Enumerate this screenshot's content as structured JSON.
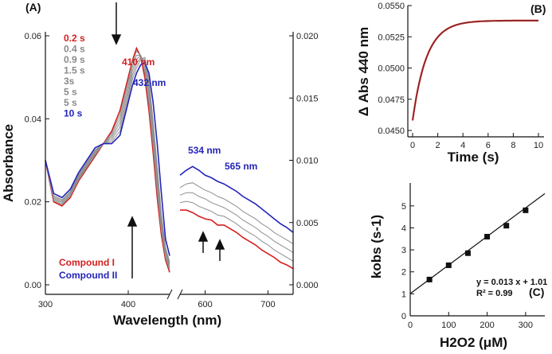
{
  "chart_data": [
    {
      "panel_label": "(A)",
      "type": "line",
      "xlabel": "Wavelength (nm)",
      "ylabel": "Absorbance",
      "xlim": [
        300,
        740
      ],
      "xticks": [
        300,
        400,
        600,
        700
      ],
      "ylim_left": [
        0.0,
        0.06
      ],
      "yticks_left": [
        "0.00",
        "0.02",
        "0.04",
        "0.06"
      ],
      "ylim_right": [
        0.0,
        0.02
      ],
      "yticks_right": [
        "0.000",
        "0.005",
        "0.010",
        "0.015",
        "0.020"
      ],
      "axis_break_between": [
        450,
        560
      ],
      "legend": [
        {
          "label": "0.2 s",
          "color": "#d42020"
        },
        {
          "label": "0.4 s",
          "color": "#8a8a8a"
        },
        {
          "label": "0.9 s",
          "color": "#8a8a8a"
        },
        {
          "label": "1.5 s",
          "color": "#8a8a8a"
        },
        {
          "label": "3s",
          "color": "#8a8a8a"
        },
        {
          "label": "5 s",
          "color": "#8a8a8a"
        },
        {
          "label": "5 s",
          "color": "#8a8a8a"
        },
        {
          "label": "10 s",
          "color": "#2424b8"
        }
      ],
      "annotations": [
        {
          "text": "410 nm",
          "color": "#d42020"
        },
        {
          "text": "432 nm",
          "color": "#2424b8"
        },
        {
          "text": "534 nm",
          "color": "#2424b8"
        },
        {
          "text": "565 nm",
          "color": "#2424b8"
        }
      ],
      "compound_labels": [
        {
          "text": "Compound I",
          "color": "#d42020"
        },
        {
          "text": "Compound II",
          "color": "#2424b8"
        }
      ],
      "soret_region": {
        "x": [
          300,
          310,
          320,
          330,
          340,
          350,
          360,
          370,
          380,
          390,
          400,
          405,
          410,
          415,
          420,
          425,
          430,
          435,
          440,
          445,
          450
        ],
        "series": [
          {
            "name": "0.2 s",
            "color": "#d42020",
            "values": [
              0.03,
              0.02,
              0.019,
              0.021,
              0.025,
              0.028,
              0.031,
              0.034,
              0.037,
              0.042,
              0.05,
              0.054,
              0.057,
              0.055,
              0.05,
              0.042,
              0.032,
              0.021,
              0.012,
              0.006,
              0.003
            ]
          },
          {
            "name": "0.4 s",
            "color": "#8f8f8f",
            "values": [
              0.03,
              0.0203,
              0.0193,
              0.0213,
              0.0253,
              0.0283,
              0.0313,
              0.034,
              0.0365,
              0.041,
              0.049,
              0.0535,
              0.0563,
              0.0553,
              0.0513,
              0.0435,
              0.0335,
              0.0225,
              0.013,
              0.0066,
              0.0035
            ]
          },
          {
            "name": "0.9 s",
            "color": "#8f8f8f",
            "values": [
              0.03,
              0.0206,
              0.0196,
              0.0216,
              0.0256,
              0.0286,
              0.0316,
              0.034,
              0.036,
              0.04,
              0.048,
              0.0525,
              0.0553,
              0.0553,
              0.0523,
              0.045,
              0.035,
              0.024,
              0.014,
              0.0072,
              0.004
            ]
          },
          {
            "name": "1.5 s",
            "color": "#8f8f8f",
            "values": [
              0.03,
              0.0209,
              0.0199,
              0.0219,
              0.0259,
              0.0289,
              0.0319,
              0.034,
              0.0355,
              0.039,
              0.047,
              0.0515,
              0.0543,
              0.0553,
              0.0533,
              0.0465,
              0.0365,
              0.0255,
              0.015,
              0.0078,
              0.0045
            ]
          },
          {
            "name": "3s",
            "color": "#8f8f8f",
            "values": [
              0.03,
              0.0212,
              0.0202,
              0.0222,
              0.0262,
              0.0292,
              0.0322,
              0.034,
              0.035,
              0.038,
              0.046,
              0.0505,
              0.0533,
              0.0548,
              0.0543,
              0.048,
              0.038,
              0.027,
              0.016,
              0.0084,
              0.005
            ]
          },
          {
            "name": "5 s",
            "color": "#8f8f8f",
            "values": [
              0.03,
              0.0215,
              0.0205,
              0.0225,
              0.0265,
              0.0295,
              0.0325,
              0.034,
              0.0345,
              0.037,
              0.045,
              0.0495,
              0.0523,
              0.0543,
              0.0548,
              0.0495,
              0.0395,
              0.0285,
              0.017,
              0.009,
              0.0055
            ]
          },
          {
            "name": "10 s",
            "color": "#2424b8",
            "values": [
              0.03,
              0.022,
              0.021,
              0.023,
              0.027,
              0.03,
              0.033,
              0.034,
              0.034,
              0.036,
              0.044,
              0.048,
              0.051,
              0.053,
              0.0535,
              0.051,
              0.044,
              0.034,
              0.022,
              0.011,
              0.007
            ]
          }
        ]
      },
      "visible_region": {
        "x": [
          560,
          570,
          580,
          590,
          600,
          610,
          620,
          630,
          640,
          650,
          660,
          670,
          680,
          690,
          700,
          710,
          720,
          730,
          740
        ],
        "series": [
          {
            "name": "0.2 s",
            "color": "#d42020",
            "values": [
              0.006,
              0.006,
              0.0058,
              0.0055,
              0.0053,
              0.0052,
              0.0048,
              0.0048,
              0.0045,
              0.0042,
              0.0038,
              0.0035,
              0.0032,
              0.0028,
              0.0025,
              0.0022,
              0.0018,
              0.0016,
              0.0013
            ]
          },
          {
            "name": "0.4 s",
            "color": "#8f8f8f",
            "values": [
              0.0066,
              0.0067,
              0.0066,
              0.0063,
              0.0061,
              0.0059,
              0.0056,
              0.0055,
              0.0052,
              0.0049,
              0.0045,
              0.0042,
              0.0039,
              0.0035,
              0.0032,
              0.0028,
              0.0025,
              0.0022,
              0.0019
            ]
          },
          {
            "name": "0.9 s",
            "color": "#8f8f8f",
            "values": [
              0.0072,
              0.0074,
              0.0074,
              0.0071,
              0.0069,
              0.0066,
              0.0064,
              0.0062,
              0.0059,
              0.0056,
              0.0052,
              0.0049,
              0.0046,
              0.0042,
              0.0039,
              0.0035,
              0.0032,
              0.0029,
              0.0026
            ]
          },
          {
            "name": "1.5 s",
            "color": "#8f8f8f",
            "values": [
              0.0078,
              0.0081,
              0.0082,
              0.0079,
              0.0076,
              0.0074,
              0.0071,
              0.0069,
              0.0066,
              0.0063,
              0.0059,
              0.0056,
              0.0053,
              0.0049,
              0.0046,
              0.0042,
              0.0039,
              0.0036,
              0.0033
            ]
          },
          {
            "name": "10 s",
            "color": "#2424b8",
            "values": [
              0.0088,
              0.0092,
              0.0095,
              0.0092,
              0.0088,
              0.0086,
              0.0083,
              0.0081,
              0.0078,
              0.0075,
              0.0071,
              0.0068,
              0.0065,
              0.0061,
              0.0057,
              0.0053,
              0.0049,
              0.0046,
              0.0042
            ]
          }
        ]
      }
    },
    {
      "panel_label": "(B)",
      "type": "line",
      "xlabel": "Time (s)",
      "ylabel": "Δ Abs 440 nm",
      "xlim": [
        0,
        10
      ],
      "xticks": [
        0,
        2,
        4,
        6,
        8,
        10
      ],
      "ylim": [
        0.045,
        0.055
      ],
      "yticks": [
        "0.0450",
        "0.0475",
        "0.0500",
        "0.0525",
        "0.0550"
      ],
      "series": [
        {
          "name": "data",
          "color": "#d42020",
          "fit": {
            "a": 0.0538,
            "b": 0.008,
            "k": 0.9
          }
        },
        {
          "name": "fit",
          "color": "#333333"
        }
      ]
    },
    {
      "panel_label": "(C)",
      "type": "scatter",
      "xlabel": "H2O2 (μM)",
      "ylabel": "kobs (s-1)",
      "xlim": [
        0,
        350
      ],
      "xticks": [
        0,
        100,
        200,
        300
      ],
      "ylim": [
        0,
        5.5
      ],
      "yticks": [
        0,
        1,
        2,
        3,
        4,
        5
      ],
      "points": [
        {
          "x": 50,
          "y": 1.65
        },
        {
          "x": 100,
          "y": 2.3
        },
        {
          "x": 150,
          "y": 2.85
        },
        {
          "x": 200,
          "y": 3.6
        },
        {
          "x": 250,
          "y": 4.1
        },
        {
          "x": 300,
          "y": 4.8
        }
      ],
      "fit": {
        "slope": 0.013,
        "intercept": 1.01
      },
      "equation": "y = 0.013 x + 1.01",
      "r2": "R² = 0.99"
    }
  ]
}
